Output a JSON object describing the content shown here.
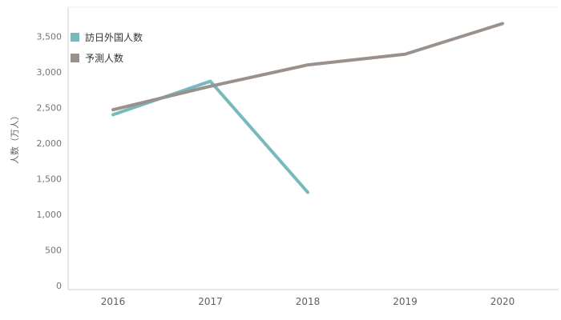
{
  "chart_data": {
    "type": "line",
    "title": "",
    "xlabel": "",
    "ylabel": "人数（万人）",
    "x": [
      2016,
      2017,
      2018,
      2019,
      2020
    ],
    "yticks": [
      0,
      500,
      1000,
      1500,
      2000,
      2500,
      3000,
      3500
    ],
    "ylim": [
      0,
      3750
    ],
    "grid": false,
    "legend_position": "top-left",
    "series": [
      {
        "name": "訪日外国人数",
        "color": "#77b9bc",
        "x": [
          2016,
          2017,
          2018
        ],
        "values": [
          2400,
          2870,
          1310
        ]
      },
      {
        "name": "予測人数",
        "color": "#9a908c",
        "x": [
          2016,
          2017,
          2018,
          2019,
          2020
        ],
        "values": [
          2470,
          2800,
          3100,
          3250,
          3680
        ]
      }
    ]
  }
}
